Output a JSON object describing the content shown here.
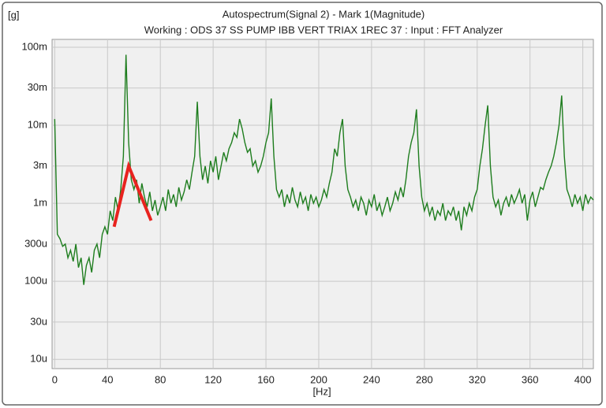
{
  "chart_data": {
    "type": "line",
    "title": "Autospectrum(Signal 2) - Mark 1(Magnitude)",
    "subtitle": "Working : ODS 37 SS PUMP IBB VERT TRIAX 1REC 37 : Input : FFT Analyzer",
    "y_label": "[g]",
    "x_label": "[Hz]",
    "log_y": true,
    "grid": true,
    "xlim": [
      -2,
      408
    ],
    "xticks": [
      0,
      40,
      80,
      120,
      160,
      200,
      240,
      280,
      320,
      360,
      400
    ],
    "ylim": [
      7.6e-06,
      0.126
    ],
    "yticks": [
      {
        "value": 1e-05,
        "label": "10u"
      },
      {
        "value": 3e-05,
        "label": "30u"
      },
      {
        "value": 0.0001,
        "label": "100u"
      },
      {
        "value": 0.0003,
        "label": "300u"
      },
      {
        "value": 0.001,
        "label": "1m"
      },
      {
        "value": 0.003,
        "label": "3m"
      },
      {
        "value": 0.01,
        "label": "10m"
      },
      {
        "value": 0.03,
        "label": "30m"
      },
      {
        "value": 0.1,
        "label": "100m"
      }
    ],
    "x": [
      0,
      2,
      4,
      6,
      8,
      10,
      12,
      14,
      16,
      18,
      20,
      22,
      24,
      26,
      28,
      30,
      32,
      34,
      36,
      38,
      40,
      42,
      44,
      46,
      48,
      50,
      52,
      54,
      56,
      58,
      60,
      62,
      64,
      66,
      68,
      70,
      72,
      74,
      76,
      78,
      80,
      82,
      84,
      86,
      88,
      90,
      92,
      94,
      96,
      98,
      100,
      102,
      104,
      106,
      108,
      110,
      112,
      114,
      116,
      118,
      120,
      122,
      124,
      126,
      128,
      130,
      132,
      134,
      136,
      138,
      140,
      142,
      144,
      146,
      148,
      150,
      152,
      154,
      156,
      158,
      160,
      162,
      164,
      166,
      168,
      170,
      172,
      174,
      176,
      178,
      180,
      182,
      184,
      186,
      188,
      190,
      192,
      194,
      196,
      198,
      200,
      202,
      204,
      206,
      208,
      210,
      212,
      214,
      216,
      218,
      220,
      222,
      224,
      226,
      228,
      230,
      232,
      234,
      236,
      238,
      240,
      242,
      244,
      246,
      248,
      250,
      252,
      254,
      256,
      258,
      260,
      262,
      264,
      266,
      268,
      270,
      272,
      274,
      276,
      278,
      280,
      282,
      284,
      286,
      288,
      290,
      292,
      294,
      296,
      298,
      300,
      302,
      304,
      306,
      308,
      310,
      312,
      314,
      316,
      318,
      320,
      322,
      324,
      326,
      328,
      330,
      332,
      334,
      336,
      338,
      340,
      342,
      344,
      346,
      348,
      350,
      352,
      354,
      356,
      358,
      360,
      362,
      364,
      366,
      368,
      370,
      372,
      374,
      376,
      378,
      380,
      382,
      384,
      386,
      388,
      390,
      392,
      394,
      396,
      398,
      400,
      402,
      404,
      406,
      408
    ],
    "series": [
      {
        "color": "#1e7d1e",
        "values": [
          0.012,
          0.0004,
          0.00035,
          0.00028,
          0.0003,
          0.0002,
          0.00025,
          0.00018,
          0.0003,
          0.00015,
          0.0002,
          9e-05,
          0.00016,
          0.0002,
          0.00013,
          0.00025,
          0.0003,
          0.0002,
          0.0004,
          0.0005,
          0.0004,
          0.0008,
          0.0006,
          0.0012,
          0.0008,
          0.0015,
          0.004,
          0.08,
          0.006,
          0.002,
          0.0015,
          0.002,
          0.001,
          0.0018,
          0.0012,
          0.0009,
          0.0014,
          0.0008,
          0.0011,
          0.0007,
          0.0009,
          0.0012,
          0.0008,
          0.0015,
          0.001,
          0.0013,
          0.0009,
          0.0016,
          0.0011,
          0.0014,
          0.002,
          0.0015,
          0.0025,
          0.004,
          0.02,
          0.004,
          0.002,
          0.003,
          0.0018,
          0.0035,
          0.0025,
          0.004,
          0.002,
          0.003,
          0.0045,
          0.0035,
          0.005,
          0.006,
          0.008,
          0.007,
          0.012,
          0.009,
          0.006,
          0.0045,
          0.005,
          0.003,
          0.0035,
          0.0025,
          0.003,
          0.004,
          0.006,
          0.008,
          0.022,
          0.004,
          0.0015,
          0.0012,
          0.0015,
          0.0009,
          0.0013,
          0.001,
          0.0016,
          0.0011,
          0.0009,
          0.0014,
          0.001,
          0.0012,
          0.0008,
          0.0013,
          0.001,
          0.0012,
          0.0009,
          0.0011,
          0.0015,
          0.0012,
          0.0018,
          0.0025,
          0.005,
          0.004,
          0.008,
          0.012,
          0.003,
          0.0015,
          0.0012,
          0.0009,
          0.0011,
          0.0008,
          0.0012,
          0.001,
          0.0007,
          0.0011,
          0.0009,
          0.0013,
          0.0008,
          0.001,
          0.0007,
          0.0009,
          0.0012,
          0.0008,
          0.001,
          0.0014,
          0.0011,
          0.0016,
          0.0012,
          0.002,
          0.004,
          0.006,
          0.008,
          0.016,
          0.003,
          0.0012,
          0.0008,
          0.001,
          0.0007,
          0.0009,
          0.0006,
          0.0008,
          0.0007,
          0.001,
          0.0006,
          0.0008,
          0.0007,
          0.0009,
          0.0006,
          0.0008,
          0.00045,
          0.0009,
          0.0007,
          0.001,
          0.0008,
          0.0012,
          0.0015,
          0.003,
          0.005,
          0.01,
          0.018,
          0.003,
          0.0012,
          0.0009,
          0.0011,
          0.0007,
          0.001,
          0.0012,
          0.0009,
          0.0013,
          0.001,
          0.0012,
          0.0015,
          0.001,
          0.0013,
          0.0006,
          0.0011,
          0.0014,
          0.0009,
          0.0012,
          0.0016,
          0.0015,
          0.002,
          0.0025,
          0.003,
          0.004,
          0.006,
          0.01,
          0.024,
          0.004,
          0.0015,
          0.0012,
          0.0009,
          0.0013,
          0.001,
          0.0012,
          0.0008,
          0.0013,
          0.001,
          0.0012,
          0.0011
        ]
      }
    ],
    "annotation": {
      "color": "#e8231f",
      "x": [
        45,
        56,
        73
      ],
      "y": [
        0.0005,
        0.003,
        0.0006
      ]
    }
  }
}
